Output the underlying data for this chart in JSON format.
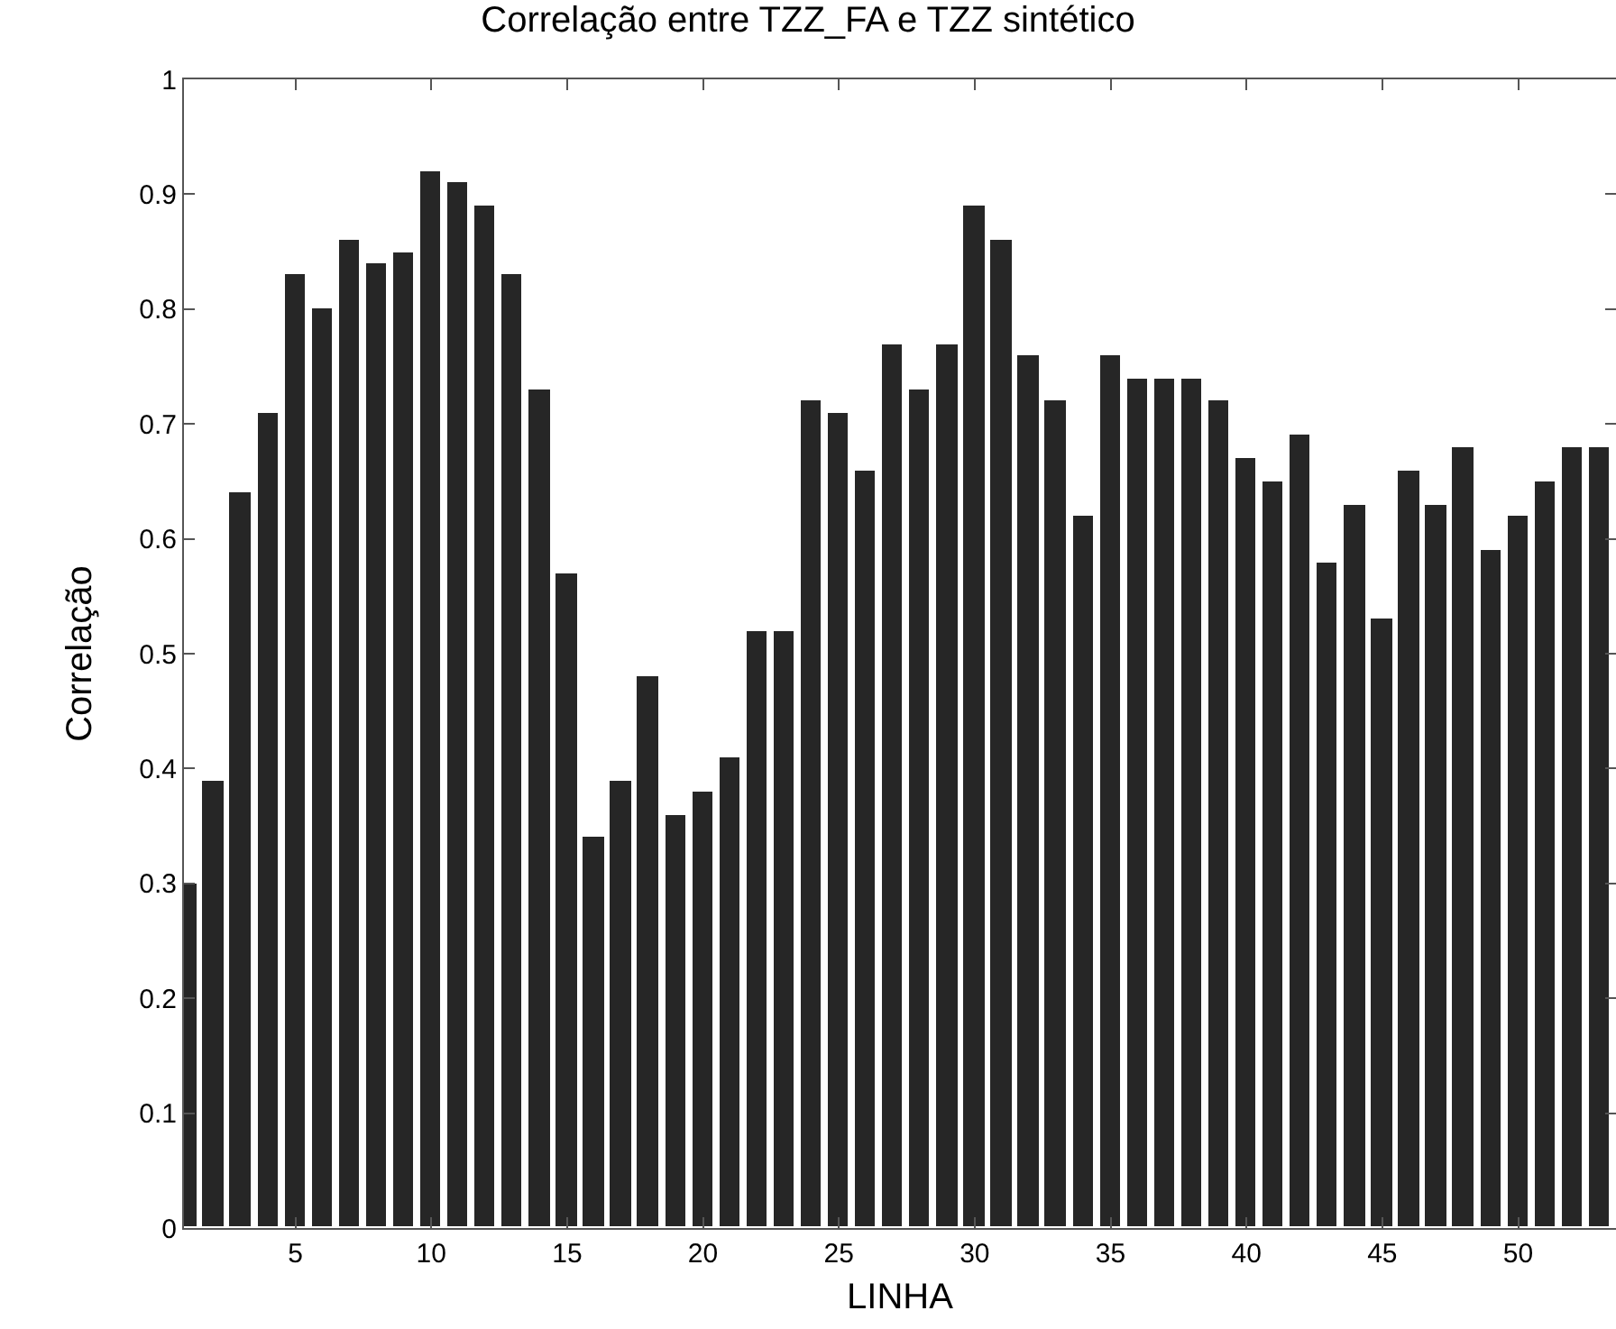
{
  "chart_data": {
    "type": "bar",
    "title": "Correlação entre TZZ_FA e TZZ sintético",
    "xlabel": "LINHA",
    "ylabel": "Correlação",
    "x": [
      1,
      2,
      3,
      4,
      5,
      6,
      7,
      8,
      9,
      10,
      11,
      12,
      13,
      14,
      15,
      16,
      17,
      18,
      19,
      20,
      21,
      22,
      23,
      24,
      25,
      26,
      27,
      28,
      29,
      30,
      31,
      32,
      33,
      34,
      35,
      36,
      37,
      38,
      39,
      40,
      41,
      42,
      43,
      44,
      45,
      46,
      47,
      48,
      49,
      50,
      51,
      52,
      53
    ],
    "values": [
      0.3,
      0.39,
      0.64,
      0.71,
      0.83,
      0.8,
      0.86,
      0.84,
      0.85,
      0.92,
      0.91,
      0.89,
      0.83,
      0.73,
      0.57,
      0.34,
      0.39,
      0.48,
      0.36,
      0.38,
      0.41,
      0.52,
      0.52,
      0.72,
      0.71,
      0.66,
      0.77,
      0.73,
      0.77,
      0.89,
      0.86,
      0.76,
      0.72,
      0.62,
      0.76,
      0.74,
      0.74,
      0.74,
      0.72,
      0.67,
      0.65,
      0.69,
      0.58,
      0.63,
      0.53,
      0.66,
      0.63,
      0.68,
      0.59,
      0.62,
      0.65,
      0.68,
      0.68
    ],
    "color": "#262626",
    "xlim": [
      0.9,
      53.6
    ],
    "xticks": [
      5,
      10,
      15,
      20,
      25,
      30,
      35,
      40,
      45,
      50
    ],
    "ylim": [
      0,
      1
    ],
    "yticks": [
      0,
      0.1,
      0.2,
      0.3,
      0.4,
      0.5,
      0.6,
      0.7,
      0.8,
      0.9,
      1
    ],
    "grid": false,
    "legend": false
  }
}
